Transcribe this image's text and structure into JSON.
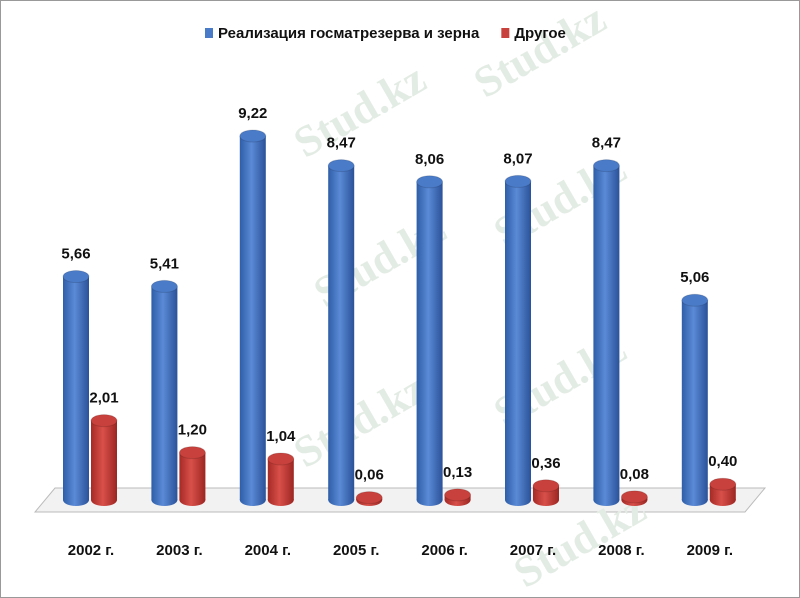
{
  "chart_data": {
    "type": "cylinder-bar",
    "watermark": "Stud.kz",
    "categories": [
      "2002 г.",
      "2003 г.",
      "2004 г.",
      "2005 г.",
      "2006 г.",
      "2007 г.",
      "2008 г.",
      "2009 г."
    ],
    "series": [
      {
        "name": "Реализация госматрезерва и зерна",
        "color": "#4a7bc8",
        "values": [
          5.66,
          5.41,
          9.22,
          8.47,
          8.06,
          8.07,
          8.47,
          5.06
        ],
        "value_labels": [
          "5,66",
          "5,41",
          "9,22",
          "8,47",
          "8,06",
          "8,07",
          "8,47",
          "5,06"
        ]
      },
      {
        "name": "Другое",
        "color": "#c8413c",
        "values": [
          2.01,
          1.2,
          1.04,
          0.06,
          0.13,
          0.36,
          0.08,
          0.4
        ],
        "value_labels": [
          "2,01",
          "1,20",
          "1,04",
          "0,06",
          "0,13",
          "0,36",
          "0,08",
          "0,40"
        ]
      }
    ],
    "legend": "top"
  }
}
